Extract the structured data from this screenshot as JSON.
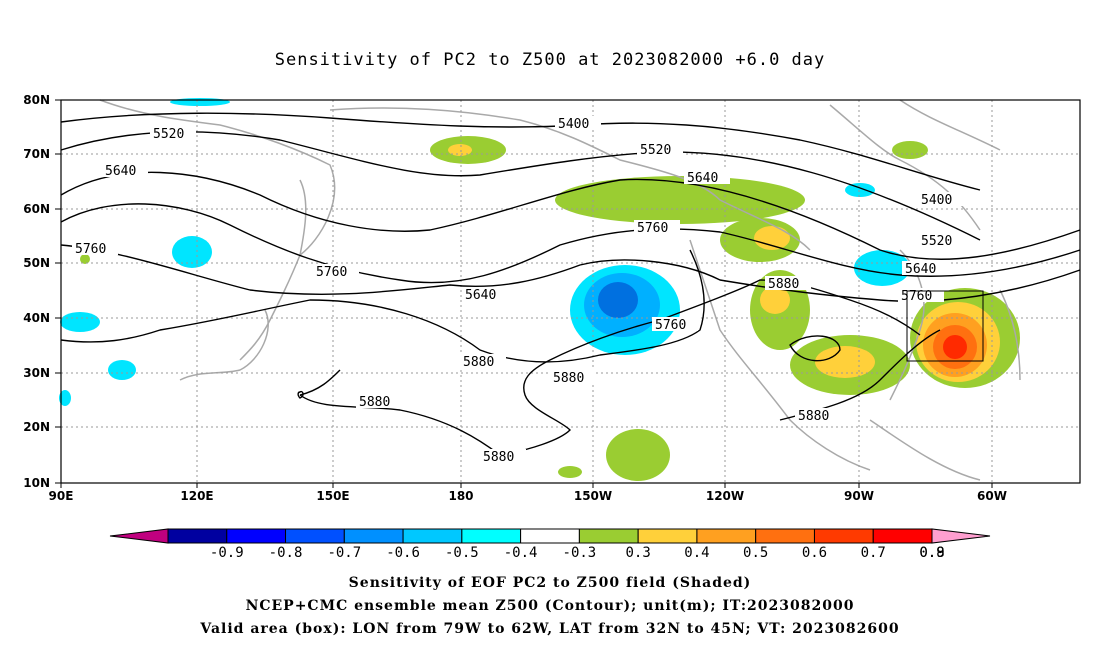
{
  "title": "Sensitivity of PC2 to Z500 at 2023082000 +6.0 day",
  "lat_labels": [
    "80N",
    "70N",
    "60N",
    "50N",
    "40N",
    "30N",
    "20N",
    "10N"
  ],
  "lon_labels": [
    "90E",
    "120E",
    "150E",
    "180",
    "150W",
    "120W",
    "90W",
    "60W"
  ],
  "contour_labels": [
    "5400",
    "5520",
    "5640",
    "5760",
    "5880"
  ],
  "colorbar": {
    "labels": [
      "-0.9",
      "-0.8",
      "-0.7",
      "-0.6",
      "-0.5",
      "-0.4",
      "-0.3",
      "0.3",
      "0.4",
      "0.5",
      "0.6",
      "0.7",
      "0.8",
      "0.9"
    ],
    "colors": [
      "#c0007f",
      "#0000a0",
      "#0000ff",
      "#0050ff",
      "#0090ff",
      "#00c8ff",
      "#00ffff",
      "#ffffff",
      "#9acd32",
      "#ffd03a",
      "#ffa020",
      "#ff7010",
      "#ff3a00",
      "#ff0000",
      "#ff9fd0"
    ]
  },
  "box": {
    "lon_from": "79W",
    "lon_to": "62W",
    "lat_from": "32N",
    "lat_to": "45N"
  },
  "captions": [
    "Sensitivity of EOF PC2 to Z500 field (Shaded)",
    "NCEP+CMC ensemble mean Z500 (Contour); unit(m); IT:2023082000",
    "Valid area (box): LON from 79W to 62W, LAT from 32N to 45N; VT: 2023082600"
  ]
}
